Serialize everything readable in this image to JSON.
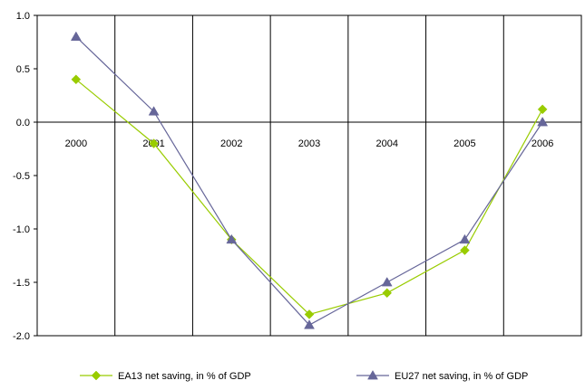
{
  "chart_data": {
    "type": "line",
    "categories": [
      "2000",
      "2001",
      "2002",
      "2003",
      "2004",
      "2005",
      "2006"
    ],
    "ylim": [
      -2.0,
      1.0
    ],
    "y_ticks": [
      "1.0",
      "0.5",
      "0.0",
      "-0.5",
      "-1.0",
      "-1.5",
      "-2.0"
    ],
    "y_tick_values": [
      1.0,
      0.5,
      0.0,
      -0.5,
      -1.0,
      -1.5,
      -2.0
    ],
    "category_axis_at": 0,
    "grid": "vertical",
    "legend_position": "bottom",
    "series": [
      {
        "name": "EA13 net saving, in % of GDP",
        "values": [
          0.4,
          -0.2,
          -1.1,
          -1.8,
          -1.6,
          -1.2,
          0.12
        ],
        "color": "#99cc00",
        "marker": "diamond"
      },
      {
        "name": "EU27 net saving, in % of GDP",
        "values": [
          0.8,
          0.1,
          -1.1,
          -1.9,
          -1.5,
          -1.1,
          0.0
        ],
        "color": "#666699",
        "marker": "triangle"
      }
    ]
  }
}
